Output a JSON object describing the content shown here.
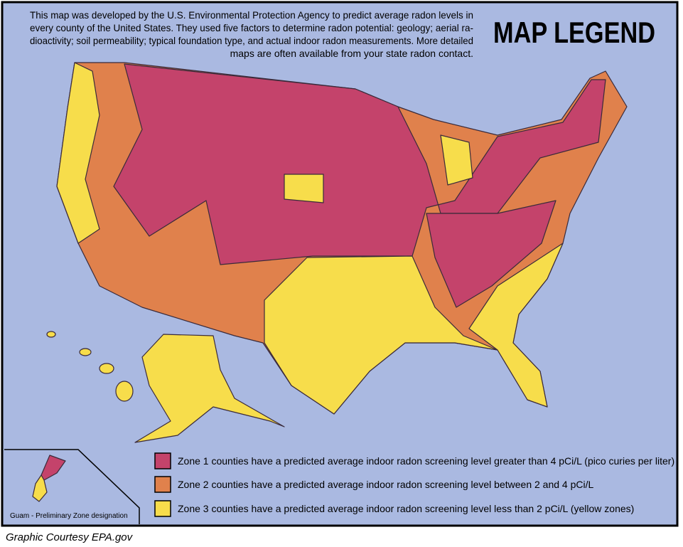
{
  "title": "MAP LEGEND",
  "description": [
    "This map was developed by the U.S. Environmental Protection Agency to predict average radon levels in",
    "every county of the United States.  They used five factors to determine radon potential: geology; aerial ra-",
    "dioactivity; soil permeability; typical foundation type, and actual indoor radon measurements. More detailed",
    "maps are often available from your state radon contact."
  ],
  "legend": [
    {
      "color": "#c4436b",
      "label": "Zone 1 counties have a predicted average indoor radon screening level greater than 4 pCi/L (pico curies per liter)"
    },
    {
      "color": "#e0814c",
      "label": "Zone 2 counties have a predicted average indoor radon screening level between 2 and 4 pCi/L"
    },
    {
      "color": "#f7dd4b",
      "label": "Zone 3 counties have a predicted average indoor radon screening level less than 2 pCi/L (yellow zones)"
    }
  ],
  "inset_label": "Guam - Preliminary Zone designation",
  "credit": "Graphic Courtesy EPA.gov"
}
